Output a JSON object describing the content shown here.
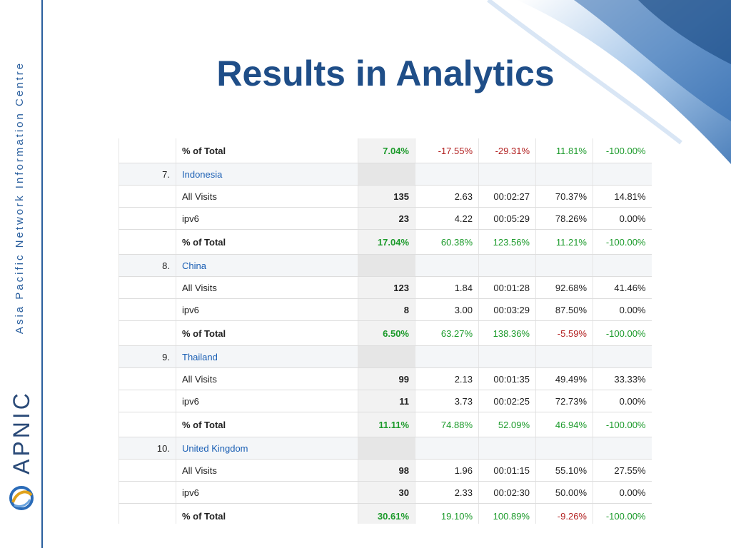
{
  "slide": {
    "title": "Results in Analytics",
    "org_name": "Asia Pacific Network Information Centre",
    "wordmark": "APNIC",
    "colors": {
      "brand_blue": "#1f4e88",
      "positive": "#1b9a2a",
      "negative": "#b21f1f",
      "link": "#1a5fb4"
    },
    "icons": [
      "apnic-emblem-icon"
    ]
  },
  "table": {
    "rows": [
      {
        "type": "total",
        "label": "% of Total",
        "visits": "7.04%",
        "c1": "-17.55%",
        "c2": "-29.31%",
        "c3": "11.81%",
        "c4": "-100.00%",
        "tone": [
          "pos",
          "neg",
          "neg",
          "pos",
          "pos"
        ]
      },
      {
        "type": "country",
        "index": "7.",
        "label": "Indonesia"
      },
      {
        "type": "data",
        "label": "All Visits",
        "visits": "135",
        "c1": "2.63",
        "c2": "00:02:27",
        "c3": "70.37%",
        "c4": "14.81%"
      },
      {
        "type": "data",
        "label": "ipv6",
        "visits": "23",
        "c1": "4.22",
        "c2": "00:05:29",
        "c3": "78.26%",
        "c4": "0.00%"
      },
      {
        "type": "total",
        "label": "% of Total",
        "visits": "17.04%",
        "c1": "60.38%",
        "c2": "123.56%",
        "c3": "11.21%",
        "c4": "-100.00%",
        "tone": [
          "pos",
          "pos",
          "pos",
          "pos",
          "pos"
        ]
      },
      {
        "type": "country",
        "index": "8.",
        "label": "China"
      },
      {
        "type": "data",
        "label": "All Visits",
        "visits": "123",
        "c1": "1.84",
        "c2": "00:01:28",
        "c3": "92.68%",
        "c4": "41.46%"
      },
      {
        "type": "data",
        "label": "ipv6",
        "visits": "8",
        "c1": "3.00",
        "c2": "00:03:29",
        "c3": "87.50%",
        "c4": "0.00%"
      },
      {
        "type": "total",
        "label": "% of Total",
        "visits": "6.50%",
        "c1": "63.27%",
        "c2": "138.36%",
        "c3": "-5.59%",
        "c4": "-100.00%",
        "tone": [
          "pos",
          "pos",
          "pos",
          "neg",
          "pos"
        ]
      },
      {
        "type": "country",
        "index": "9.",
        "label": "Thailand"
      },
      {
        "type": "data",
        "label": "All Visits",
        "visits": "99",
        "c1": "2.13",
        "c2": "00:01:35",
        "c3": "49.49%",
        "c4": "33.33%"
      },
      {
        "type": "data",
        "label": "ipv6",
        "visits": "11",
        "c1": "3.73",
        "c2": "00:02:25",
        "c3": "72.73%",
        "c4": "0.00%"
      },
      {
        "type": "total",
        "label": "% of Total",
        "visits": "11.11%",
        "c1": "74.88%",
        "c2": "52.09%",
        "c3": "46.94%",
        "c4": "-100.00%",
        "tone": [
          "pos",
          "pos",
          "pos",
          "pos",
          "pos"
        ]
      },
      {
        "type": "country",
        "index": "10.",
        "label": "United Kingdom"
      },
      {
        "type": "data",
        "label": "All Visits",
        "visits": "98",
        "c1": "1.96",
        "c2": "00:01:15",
        "c3": "55.10%",
        "c4": "27.55%"
      },
      {
        "type": "data",
        "label": "ipv6",
        "visits": "30",
        "c1": "2.33",
        "c2": "00:02:30",
        "c3": "50.00%",
        "c4": "0.00%"
      },
      {
        "type": "total",
        "label": "% of Total",
        "visits": "30.61%",
        "c1": "19.10%",
        "c2": "100.89%",
        "c3": "-9.26%",
        "c4": "-100.00%",
        "tone": [
          "pos",
          "pos",
          "pos",
          "neg",
          "pos"
        ]
      }
    ]
  }
}
